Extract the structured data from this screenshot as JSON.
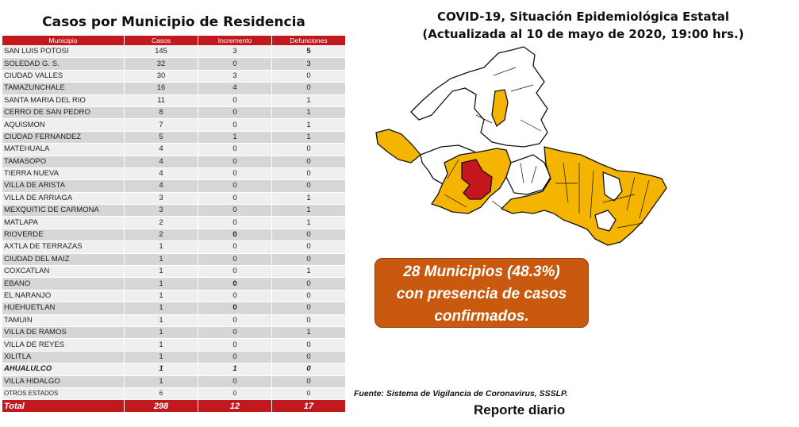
{
  "left_title": "Casos por Municipio de Residencia",
  "table": {
    "headers": [
      "Municipio",
      "Casos",
      "Incremento",
      "Defunciones"
    ],
    "rows": [
      [
        "SAN LUIS POTOSI",
        "145",
        "3",
        "5"
      ],
      [
        "SOLEDAD G. S.",
        "32",
        "0",
        "3"
      ],
      [
        "CIUDAD VALLES",
        "30",
        "3",
        "0"
      ],
      [
        "TAMAZUNCHALE",
        "16",
        "4",
        "0"
      ],
      [
        "SANTA MARIA DEL RIO",
        "11",
        "0",
        "1"
      ],
      [
        "CERRO DE SAN PEDRO",
        "8",
        "0",
        "1"
      ],
      [
        "AQUISMON",
        "7",
        "0",
        "1"
      ],
      [
        "CIUDAD FERNANDEZ",
        "5",
        "1",
        "1"
      ],
      [
        "MATEHUALA",
        "4",
        "0",
        "0"
      ],
      [
        "TAMASOPO",
        "4",
        "0",
        "0"
      ],
      [
        "TIERRA NUEVA",
        "4",
        "0",
        "0"
      ],
      [
        "VILLA DE ARISTA",
        "4",
        "0",
        "0"
      ],
      [
        "VILLA DE ARRIAGA",
        "3",
        "0",
        "1"
      ],
      [
        "MEXQUITIC DE CARMONA",
        "3",
        "0",
        "1"
      ],
      [
        "MATLAPA",
        "2",
        "0",
        "1"
      ],
      [
        "RIOVERDE",
        "2",
        "0",
        "0"
      ],
      [
        "AXTLA DE TERRAZAS",
        "1",
        "0",
        "0"
      ],
      [
        "CIUDAD DEL MAIZ",
        "1",
        "0",
        "0"
      ],
      [
        "COXCATLAN",
        "1",
        "0",
        "1"
      ],
      [
        "EBANO",
        "1",
        "0",
        "0"
      ],
      [
        "EL NARANJO",
        "1",
        "0",
        "0"
      ],
      [
        "HUEHUETLAN",
        "1",
        "0",
        "0"
      ],
      [
        "TAMUIN",
        "1",
        "0",
        "0"
      ],
      [
        "VILLA DE RAMOS",
        "1",
        "0",
        "1"
      ],
      [
        "VILLA DE REYES",
        "1",
        "0",
        "0"
      ],
      [
        "XILITLA",
        "1",
        "0",
        "0"
      ],
      [
        "AHUALULCO",
        "1",
        "1",
        "0"
      ],
      [
        "VILLA HIDALGO",
        "1",
        "0",
        "0"
      ],
      [
        "OTROS ESTADOS",
        "6",
        "0",
        "0"
      ]
    ],
    "total": [
      "Total",
      "298",
      "12",
      "17"
    ]
  },
  "right_title_line1": "COVID-19, Situación Epidemiológica Estatal",
  "right_title_line2": "(Actualizada al 10 de mayo de 2020, 19:00 hrs.)",
  "callout": {
    "line1": "28 Municipios (48.3%)",
    "line2": "con presencia de casos",
    "line3": "confirmados."
  },
  "source": "Fuente: Sistema de Vigilancia de Coronavirus, SSSLP.",
  "report": "Reporte diario",
  "colors": {
    "header_red": "#c2191e",
    "case_yellow": "#f5b400",
    "highlight_red": "#c4161c",
    "callout_orange": "#c8590f"
  }
}
